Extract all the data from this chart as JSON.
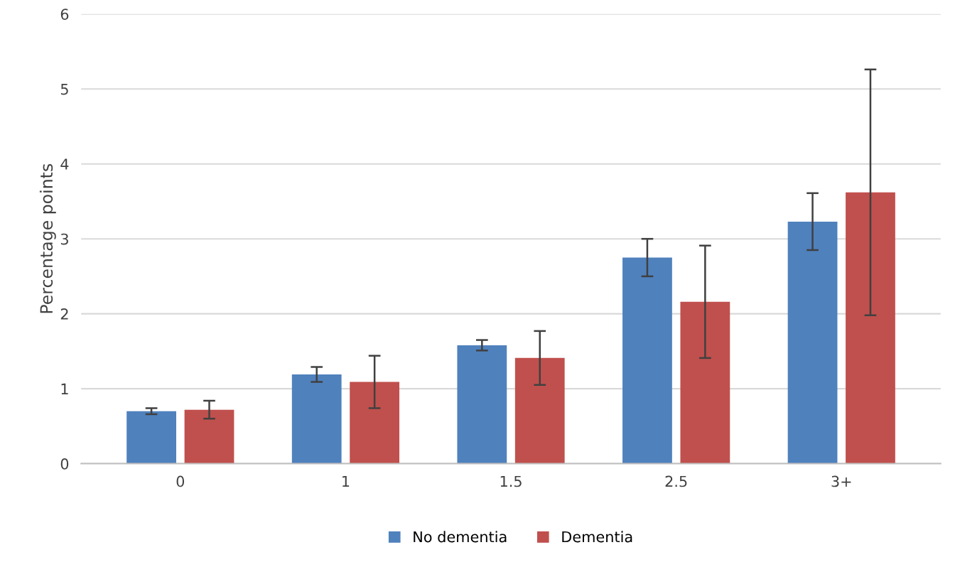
{
  "chart_data": {
    "type": "bar",
    "ylabel": "Percentage points",
    "categories": [
      "0",
      "1",
      "1.5",
      "2.5",
      "3+"
    ],
    "series": [
      {
        "name": "No dementia",
        "color": "#4f81bd",
        "values": [
          0.7,
          1.19,
          1.58,
          2.75,
          3.23
        ],
        "errors": [
          0.04,
          0.1,
          0.07,
          0.25,
          0.38
        ]
      },
      {
        "name": "Dementia",
        "color": "#c0504d",
        "values": [
          0.72,
          1.09,
          1.41,
          2.16,
          3.62
        ],
        "errors": [
          0.12,
          0.35,
          0.36,
          0.75,
          1.64
        ]
      }
    ],
    "ylim": [
      0,
      6
    ],
    "yticks": [
      0,
      1,
      2,
      3,
      4,
      5,
      6
    ],
    "grid": "y",
    "legend": "bottom"
  }
}
